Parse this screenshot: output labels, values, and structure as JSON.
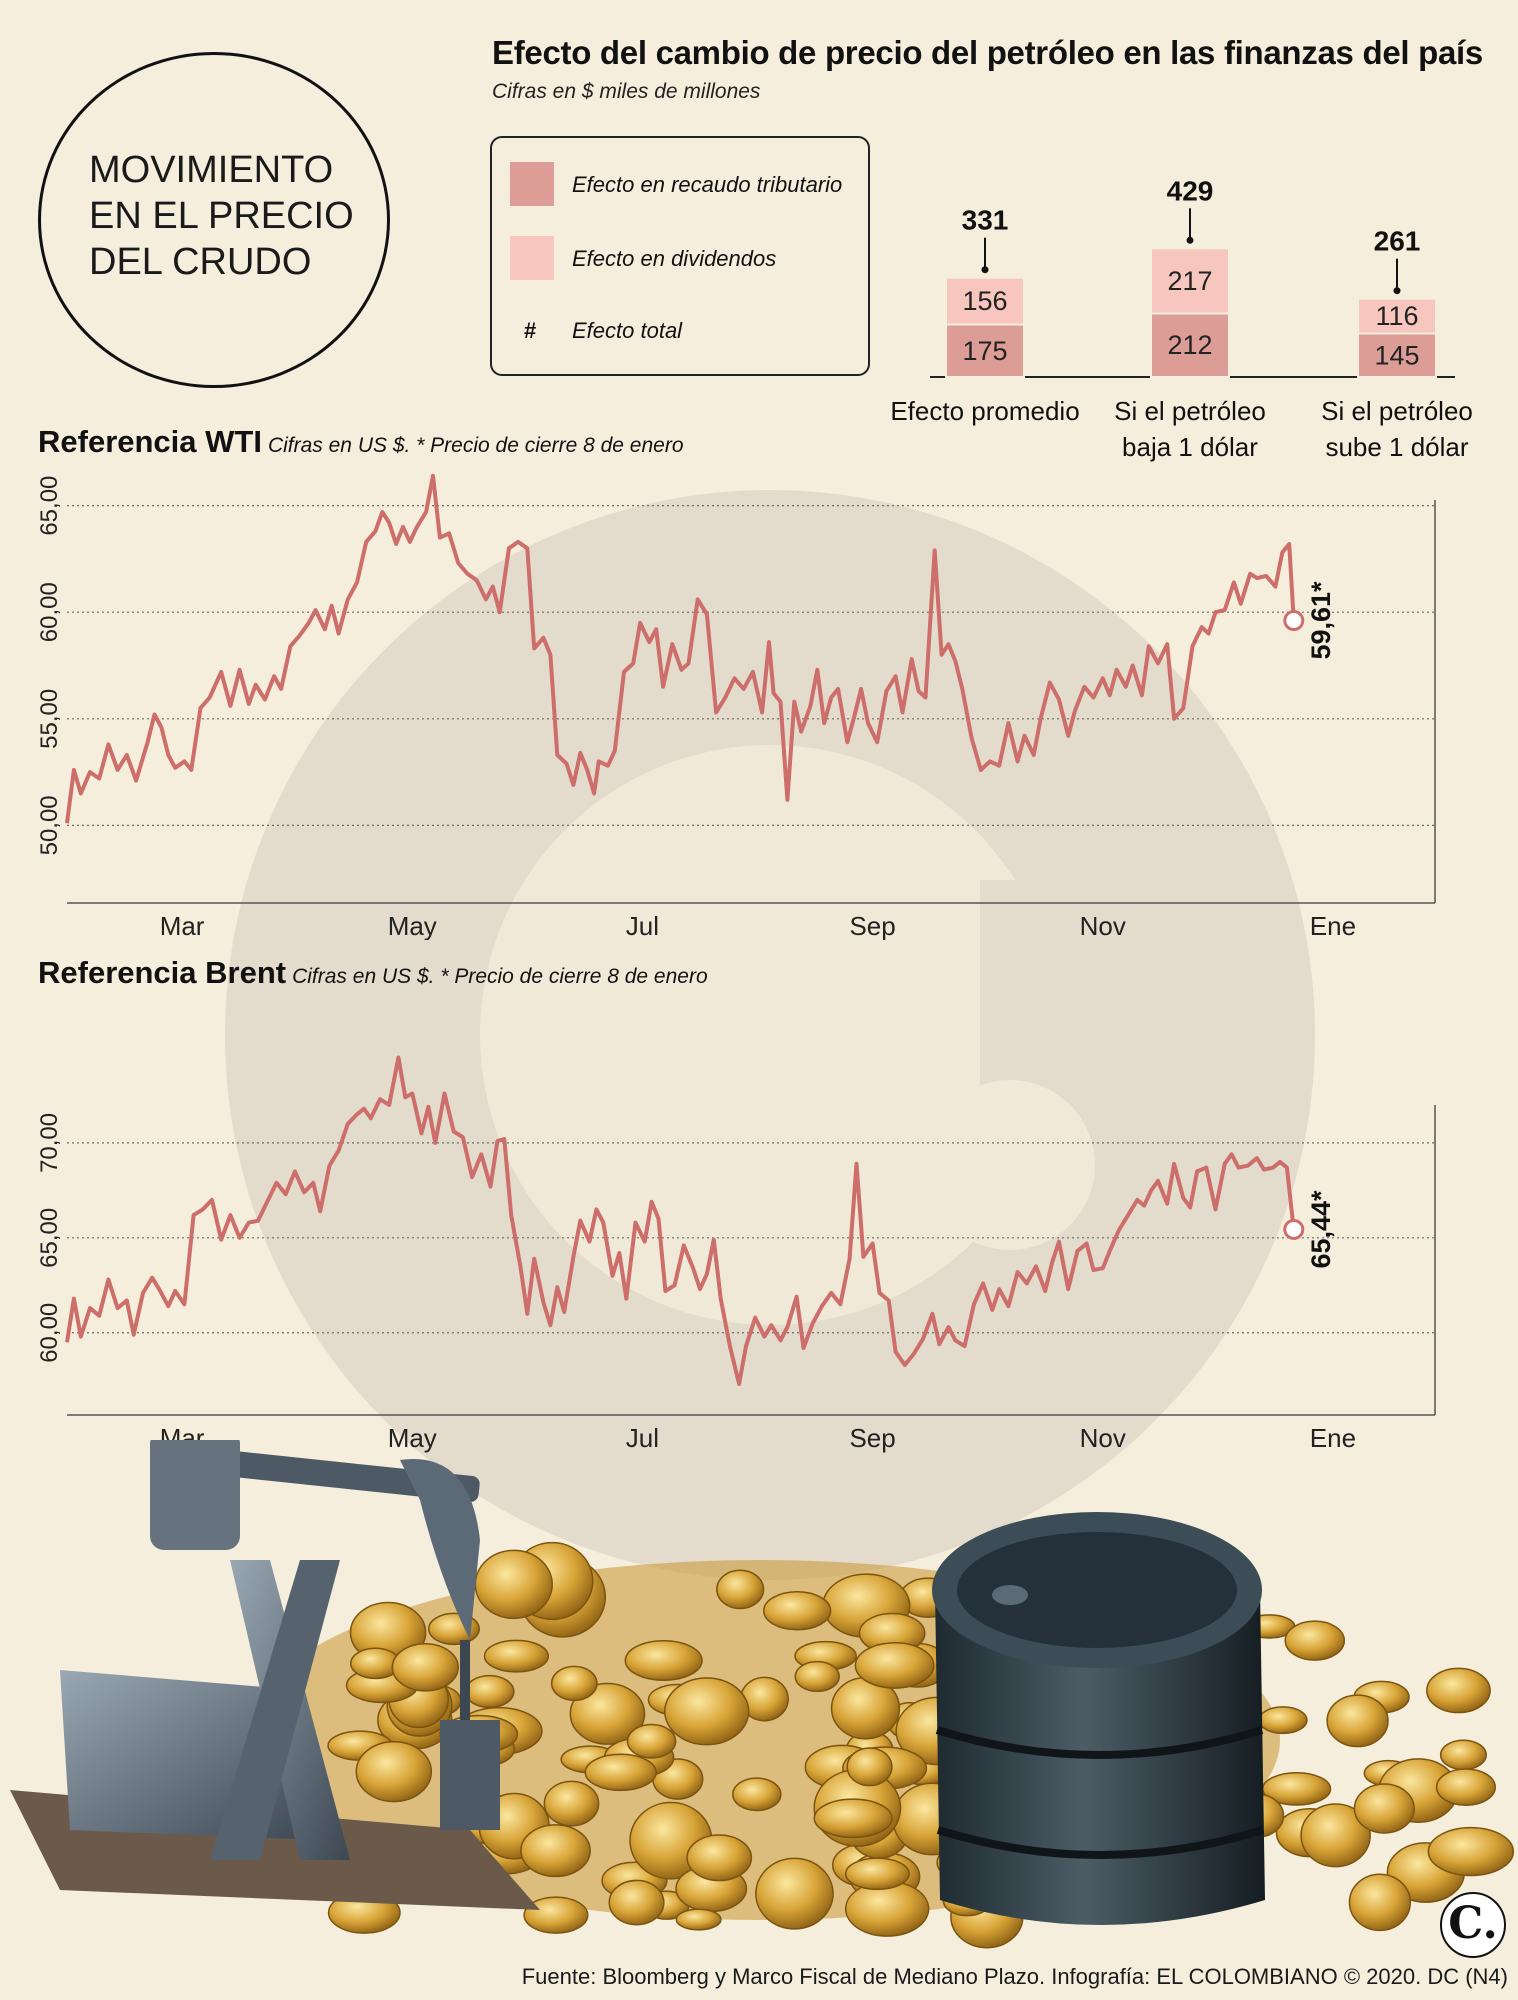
{
  "header": {
    "circle_title": "MOVIMIENTO EN EL PRECIO DEL CRUDO"
  },
  "effects": {
    "title": "Efecto del cambio de precio del petróleo en las finanzas del país",
    "subtitle": "Cifras en $ miles de millones",
    "legend": {
      "tax_label": "Efecto en recaudo tributario",
      "dividends_label": "Efecto en dividendos",
      "total_symbol": "#",
      "total_label": "Efecto total"
    }
  },
  "wti": {
    "title": "Referencia WTI",
    "note": "Cifras en US $.   * Precio de cierre 8 de enero",
    "end_label": "59,61*"
  },
  "brent": {
    "title": "Referencia Brent",
    "note": "Cifras en US $.   * Precio de cierre 8 de enero",
    "end_label": "65,44*"
  },
  "footer": {
    "source": "Fuente: Bloomberg y Marco Fiscal de Mediano Plazo. Infografía: EL COLOMBIANO © 2020. DC (N4)"
  },
  "logo": {
    "text": "C."
  },
  "colors": {
    "background": "#f5eedc",
    "tax_bar": "#dc9d96",
    "dividends_bar": "#f6c6bf",
    "line": "#cd6e6a",
    "watermark": "#e0d9cb"
  },
  "chart_data": [
    {
      "type": "bar",
      "stacked": true,
      "categories": [
        "Efecto promedio",
        "Si el petróleo baja 1 dólar",
        "Si el petróleo sube 1 dólar"
      ],
      "series": [
        {
          "name": "Efecto en recaudo tributario",
          "values": [
            175,
            212,
            145
          ]
        },
        {
          "name": "Efecto en dividendos",
          "values": [
            156,
            217,
            116
          ]
        }
      ],
      "totals": [
        331,
        429,
        261
      ]
    },
    {
      "type": "line",
      "x_tick_labels": [
        "Mar",
        "May",
        "Jul",
        "Sep",
        "Nov",
        "Ene"
      ],
      "x_ticks_month_index": [
        2,
        4,
        6,
        8,
        10,
        12
      ],
      "x_range_months": [
        1,
        13
      ],
      "y_tick_labels": [
        "50,00",
        "55,00",
        "60,00",
        "65,00"
      ],
      "y_ticks": [
        50,
        55,
        60,
        65
      ],
      "ylim": [
        48,
        67
      ],
      "grid": true,
      "end_value": 59.61,
      "points": [
        [
          1.0,
          50.1
        ],
        [
          1.06,
          52.6
        ],
        [
          1.12,
          51.5
        ],
        [
          1.2,
          52.5
        ],
        [
          1.28,
          52.2
        ],
        [
          1.36,
          53.8
        ],
        [
          1.44,
          52.6
        ],
        [
          1.52,
          53.3
        ],
        [
          1.6,
          52.1
        ],
        [
          1.7,
          53.9
        ],
        [
          1.76,
          55.2
        ],
        [
          1.82,
          54.6
        ],
        [
          1.88,
          53.3
        ],
        [
          1.94,
          52.7
        ],
        [
          2.02,
          53.0
        ],
        [
          2.08,
          52.6
        ],
        [
          2.16,
          55.5
        ],
        [
          2.24,
          56.0
        ],
        [
          2.34,
          57.2
        ],
        [
          2.42,
          55.6
        ],
        [
          2.5,
          57.3
        ],
        [
          2.58,
          55.7
        ],
        [
          2.64,
          56.6
        ],
        [
          2.72,
          55.9
        ],
        [
          2.8,
          57.0
        ],
        [
          2.86,
          56.4
        ],
        [
          2.94,
          58.4
        ],
        [
          3.02,
          58.9
        ],
        [
          3.1,
          59.5
        ],
        [
          3.16,
          60.1
        ],
        [
          3.24,
          59.2
        ],
        [
          3.3,
          60.3
        ],
        [
          3.36,
          59.0
        ],
        [
          3.44,
          60.6
        ],
        [
          3.52,
          61.4
        ],
        [
          3.6,
          63.3
        ],
        [
          3.68,
          63.8
        ],
        [
          3.74,
          64.7
        ],
        [
          3.8,
          64.2
        ],
        [
          3.86,
          63.2
        ],
        [
          3.92,
          64.0
        ],
        [
          3.98,
          63.3
        ],
        [
          4.04,
          64.0
        ],
        [
          4.12,
          64.7
        ],
        [
          4.18,
          66.4
        ],
        [
          4.24,
          63.5
        ],
        [
          4.32,
          63.7
        ],
        [
          4.4,
          62.3
        ],
        [
          4.48,
          61.8
        ],
        [
          4.56,
          61.5
        ],
        [
          4.64,
          60.6
        ],
        [
          4.7,
          61.2
        ],
        [
          4.76,
          60.0
        ],
        [
          4.84,
          63.0
        ],
        [
          4.92,
          63.3
        ],
        [
          5.0,
          63.0
        ],
        [
          5.06,
          58.3
        ],
        [
          5.14,
          58.8
        ],
        [
          5.2,
          58.0
        ],
        [
          5.26,
          53.3
        ],
        [
          5.34,
          52.9
        ],
        [
          5.4,
          51.9
        ],
        [
          5.46,
          53.4
        ],
        [
          5.52,
          52.6
        ],
        [
          5.58,
          51.5
        ],
        [
          5.62,
          53.0
        ],
        [
          5.7,
          52.8
        ],
        [
          5.76,
          53.5
        ],
        [
          5.84,
          57.2
        ],
        [
          5.92,
          57.6
        ],
        [
          5.98,
          59.5
        ],
        [
          6.06,
          58.6
        ],
        [
          6.12,
          59.2
        ],
        [
          6.18,
          56.5
        ],
        [
          6.26,
          58.5
        ],
        [
          6.34,
          57.3
        ],
        [
          6.4,
          57.6
        ],
        [
          6.48,
          60.6
        ],
        [
          6.56,
          59.9
        ],
        [
          6.64,
          55.3
        ],
        [
          6.72,
          56.0
        ],
        [
          6.8,
          56.9
        ],
        [
          6.88,
          56.4
        ],
        [
          6.96,
          57.2
        ],
        [
          7.04,
          55.3
        ],
        [
          7.1,
          58.6
        ],
        [
          7.14,
          56.2
        ],
        [
          7.2,
          55.8
        ],
        [
          7.26,
          51.2
        ],
        [
          7.32,
          55.8
        ],
        [
          7.38,
          54.4
        ],
        [
          7.46,
          55.6
        ],
        [
          7.52,
          57.3
        ],
        [
          7.58,
          54.8
        ],
        [
          7.64,
          56.0
        ],
        [
          7.7,
          56.4
        ],
        [
          7.78,
          53.9
        ],
        [
          7.84,
          55.1
        ],
        [
          7.9,
          56.4
        ],
        [
          7.96,
          54.8
        ],
        [
          8.04,
          53.9
        ],
        [
          8.12,
          56.3
        ],
        [
          8.2,
          57.0
        ],
        [
          8.26,
          55.3
        ],
        [
          8.34,
          57.8
        ],
        [
          8.4,
          56.3
        ],
        [
          8.46,
          56.0
        ],
        [
          8.54,
          62.9
        ],
        [
          8.6,
          58.0
        ],
        [
          8.66,
          58.5
        ],
        [
          8.72,
          57.7
        ],
        [
          8.78,
          56.4
        ],
        [
          8.86,
          54.1
        ],
        [
          8.94,
          52.6
        ],
        [
          9.02,
          53.0
        ],
        [
          9.1,
          52.8
        ],
        [
          9.18,
          54.8
        ],
        [
          9.26,
          53.0
        ],
        [
          9.32,
          54.2
        ],
        [
          9.4,
          53.3
        ],
        [
          9.46,
          55.0
        ],
        [
          9.54,
          56.7
        ],
        [
          9.62,
          55.9
        ],
        [
          9.7,
          54.2
        ],
        [
          9.76,
          55.4
        ],
        [
          9.84,
          56.5
        ],
        [
          9.92,
          56.0
        ],
        [
          10.0,
          56.9
        ],
        [
          10.06,
          56.1
        ],
        [
          10.12,
          57.3
        ],
        [
          10.2,
          56.5
        ],
        [
          10.26,
          57.5
        ],
        [
          10.34,
          56.1
        ],
        [
          10.4,
          58.4
        ],
        [
          10.48,
          57.6
        ],
        [
          10.56,
          58.5
        ],
        [
          10.62,
          55.0
        ],
        [
          10.7,
          55.5
        ],
        [
          10.78,
          58.4
        ],
        [
          10.86,
          59.3
        ],
        [
          10.92,
          59.0
        ],
        [
          10.98,
          60.0
        ],
        [
          11.06,
          60.1
        ],
        [
          11.14,
          61.4
        ],
        [
          11.2,
          60.4
        ],
        [
          11.28,
          61.8
        ],
        [
          11.34,
          61.6
        ],
        [
          11.42,
          61.7
        ],
        [
          11.5,
          61.2
        ],
        [
          11.56,
          62.8
        ],
        [
          11.62,
          63.2
        ],
        [
          11.66,
          59.6
        ]
      ]
    },
    {
      "type": "line",
      "x_tick_labels": [
        "Mar",
        "May",
        "Jul",
        "Sep",
        "Nov",
        "Ene"
      ],
      "x_ticks_month_index": [
        2,
        4,
        6,
        8,
        10,
        12
      ],
      "x_range_months": [
        1,
        13
      ],
      "y_tick_labels": [
        "60,00",
        "65,00",
        "70,00"
      ],
      "y_ticks": [
        60,
        65,
        70
      ],
      "ylim": [
        55.3,
        77
      ],
      "grid": true,
      "end_value": 65.44,
      "points": [
        [
          1.0,
          59.5
        ],
        [
          1.06,
          61.8
        ],
        [
          1.12,
          59.8
        ],
        [
          1.2,
          61.3
        ],
        [
          1.28,
          60.9
        ],
        [
          1.36,
          62.8
        ],
        [
          1.44,
          61.3
        ],
        [
          1.52,
          61.7
        ],
        [
          1.58,
          59.9
        ],
        [
          1.66,
          62.1
        ],
        [
          1.74,
          62.9
        ],
        [
          1.8,
          62.3
        ],
        [
          1.88,
          61.4
        ],
        [
          1.94,
          62.2
        ],
        [
          2.02,
          61.5
        ],
        [
          2.1,
          66.2
        ],
        [
          2.18,
          66.5
        ],
        [
          2.26,
          67.0
        ],
        [
          2.34,
          64.9
        ],
        [
          2.42,
          66.2
        ],
        [
          2.5,
          65.0
        ],
        [
          2.58,
          65.8
        ],
        [
          2.66,
          65.9
        ],
        [
          2.74,
          66.9
        ],
        [
          2.82,
          67.9
        ],
        [
          2.9,
          67.3
        ],
        [
          2.98,
          68.5
        ],
        [
          3.06,
          67.4
        ],
        [
          3.14,
          67.9
        ],
        [
          3.2,
          66.4
        ],
        [
          3.28,
          68.8
        ],
        [
          3.36,
          69.6
        ],
        [
          3.44,
          71.0
        ],
        [
          3.52,
          71.5
        ],
        [
          3.58,
          71.8
        ],
        [
          3.64,
          71.3
        ],
        [
          3.72,
          72.3
        ],
        [
          3.8,
          72.0
        ],
        [
          3.88,
          74.5
        ],
        [
          3.94,
          72.4
        ],
        [
          4.0,
          72.6
        ],
        [
          4.08,
          70.5
        ],
        [
          4.14,
          71.9
        ],
        [
          4.2,
          70.0
        ],
        [
          4.28,
          72.6
        ],
        [
          4.36,
          70.6
        ],
        [
          4.44,
          70.3
        ],
        [
          4.52,
          68.2
        ],
        [
          4.6,
          69.4
        ],
        [
          4.68,
          67.7
        ],
        [
          4.74,
          70.1
        ],
        [
          4.8,
          70.2
        ],
        [
          4.86,
          66.2
        ],
        [
          4.94,
          63.5
        ],
        [
          5.0,
          61.0
        ],
        [
          5.06,
          63.9
        ],
        [
          5.14,
          61.6
        ],
        [
          5.2,
          60.4
        ],
        [
          5.26,
          62.4
        ],
        [
          5.32,
          61.1
        ],
        [
          5.4,
          64.0
        ],
        [
          5.46,
          65.9
        ],
        [
          5.54,
          64.8
        ],
        [
          5.6,
          66.5
        ],
        [
          5.66,
          65.8
        ],
        [
          5.74,
          63.0
        ],
        [
          5.8,
          64.2
        ],
        [
          5.86,
          61.8
        ],
        [
          5.94,
          65.8
        ],
        [
          6.02,
          64.8
        ],
        [
          6.08,
          66.9
        ],
        [
          6.14,
          66.0
        ],
        [
          6.2,
          62.2
        ],
        [
          6.28,
          62.5
        ],
        [
          6.36,
          64.6
        ],
        [
          6.44,
          63.4
        ],
        [
          6.5,
          62.3
        ],
        [
          6.56,
          63.1
        ],
        [
          6.62,
          64.9
        ],
        [
          6.68,
          61.8
        ],
        [
          6.76,
          59.3
        ],
        [
          6.84,
          57.3
        ],
        [
          6.9,
          59.3
        ],
        [
          6.98,
          60.8
        ],
        [
          7.06,
          59.8
        ],
        [
          7.12,
          60.4
        ],
        [
          7.2,
          59.6
        ],
        [
          7.26,
          60.3
        ],
        [
          7.34,
          61.9
        ],
        [
          7.4,
          59.2
        ],
        [
          7.48,
          60.5
        ],
        [
          7.56,
          61.4
        ],
        [
          7.64,
          62.1
        ],
        [
          7.72,
          61.5
        ],
        [
          7.8,
          63.9
        ],
        [
          7.86,
          68.9
        ],
        [
          7.92,
          64.0
        ],
        [
          8.0,
          64.7
        ],
        [
          8.06,
          62.1
        ],
        [
          8.14,
          61.7
        ],
        [
          8.2,
          59.0
        ],
        [
          8.28,
          58.3
        ],
        [
          8.36,
          58.9
        ],
        [
          8.44,
          59.7
        ],
        [
          8.52,
          61.0
        ],
        [
          8.58,
          59.4
        ],
        [
          8.66,
          60.3
        ],
        [
          8.72,
          59.6
        ],
        [
          8.8,
          59.3
        ],
        [
          8.88,
          61.5
        ],
        [
          8.96,
          62.6
        ],
        [
          9.04,
          61.2
        ],
        [
          9.1,
          62.3
        ],
        [
          9.18,
          61.4
        ],
        [
          9.26,
          63.2
        ],
        [
          9.34,
          62.6
        ],
        [
          9.42,
          63.5
        ],
        [
          9.5,
          62.2
        ],
        [
          9.56,
          63.7
        ],
        [
          9.62,
          64.8
        ],
        [
          9.7,
          62.3
        ],
        [
          9.78,
          64.3
        ],
        [
          9.86,
          64.7
        ],
        [
          9.92,
          63.3
        ],
        [
          10.0,
          63.4
        ],
        [
          10.06,
          64.3
        ],
        [
          10.14,
          65.4
        ],
        [
          10.22,
          66.2
        ],
        [
          10.3,
          67.0
        ],
        [
          10.36,
          66.7
        ],
        [
          10.42,
          67.5
        ],
        [
          10.48,
          68.0
        ],
        [
          10.56,
          66.8
        ],
        [
          10.62,
          68.9
        ],
        [
          10.7,
          67.1
        ],
        [
          10.76,
          66.6
        ],
        [
          10.82,
          68.5
        ],
        [
          10.9,
          68.7
        ],
        [
          10.98,
          66.5
        ],
        [
          11.06,
          68.9
        ],
        [
          11.12,
          69.4
        ],
        [
          11.18,
          68.7
        ],
        [
          11.26,
          68.8
        ],
        [
          11.34,
          69.2
        ],
        [
          11.4,
          68.6
        ],
        [
          11.48,
          68.7
        ],
        [
          11.54,
          69.0
        ],
        [
          11.6,
          68.7
        ],
        [
          11.66,
          65.4
        ]
      ]
    }
  ]
}
